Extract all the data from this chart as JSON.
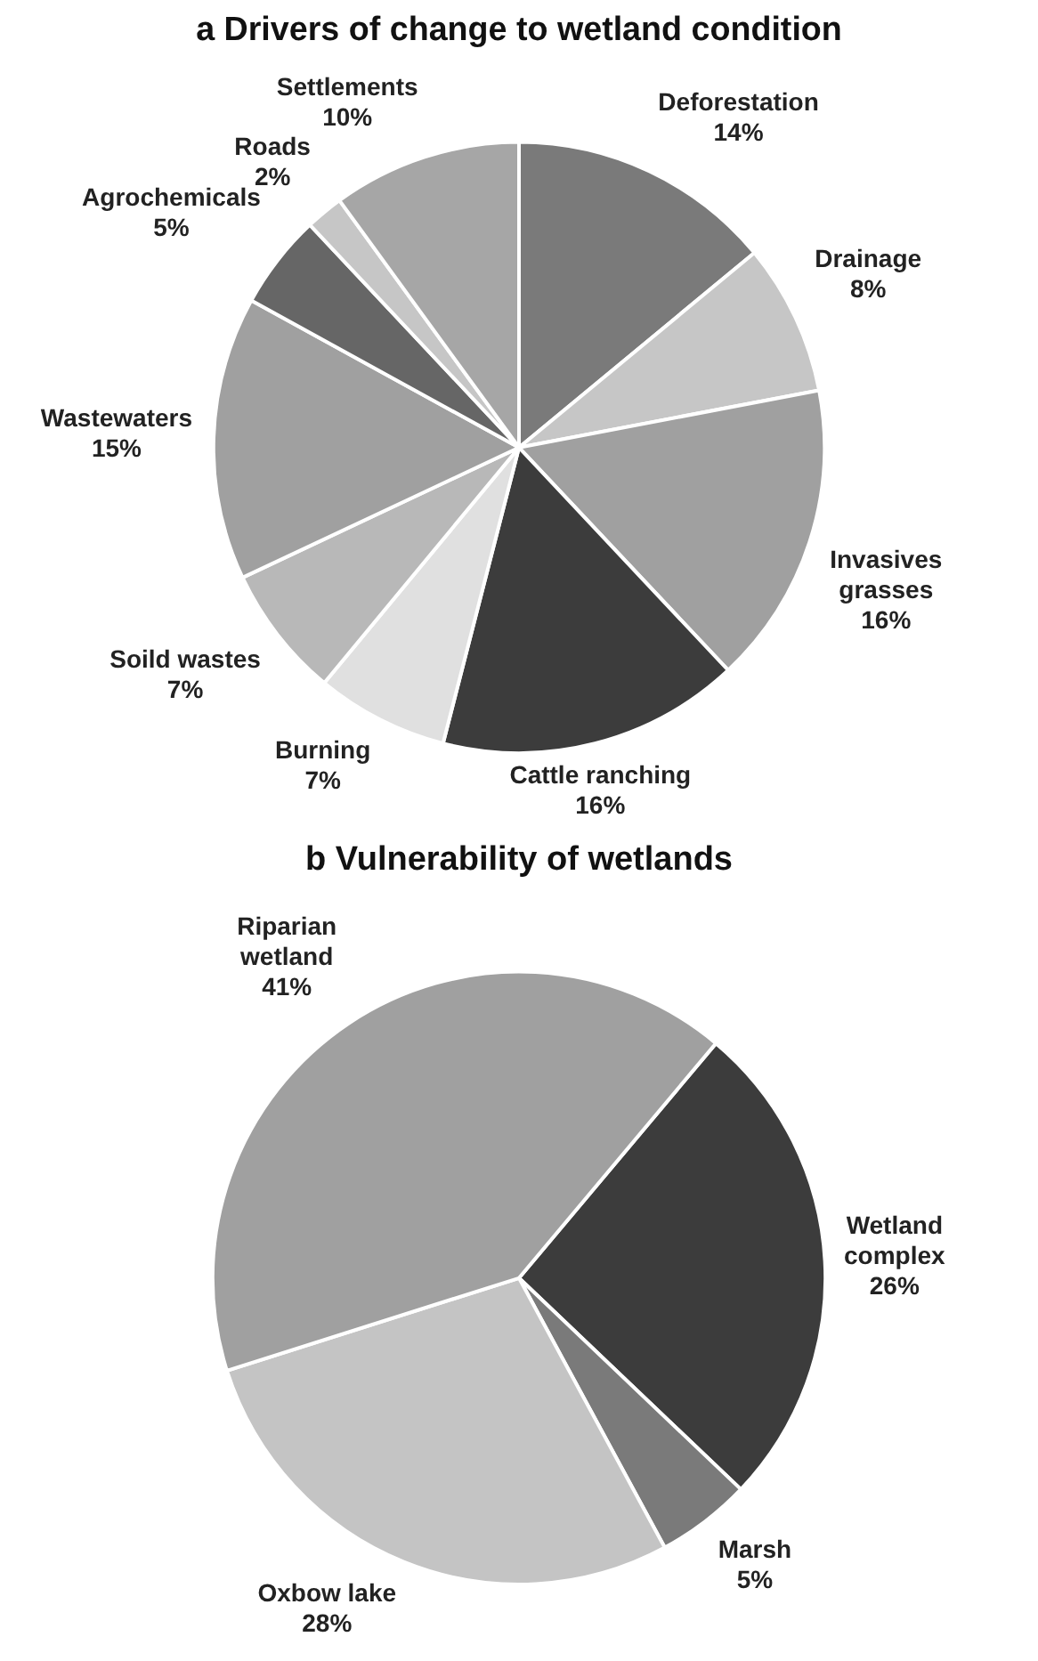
{
  "chart_data": [
    {
      "type": "pie",
      "title": "a Drivers of change to wetland condition",
      "categories": [
        "Deforestation",
        "Drainage",
        "Invasives grasses",
        "Cattle ranching",
        "Burning",
        "Soild wastes",
        "Wastewaters",
        "Agrochemicals",
        "Roads",
        "Settlements"
      ],
      "values": [
        14,
        8,
        16,
        16,
        7,
        7,
        15,
        5,
        2,
        10
      ],
      "value_labels": [
        "14%",
        "8%",
        "16%",
        "16%",
        "7%",
        "7%",
        "15%",
        "5%",
        "2%",
        "10%"
      ],
      "colors": [
        "#7a7a7a",
        "#c6c6c6",
        "#a0a0a0",
        "#3c3c3c",
        "#e0e0e0",
        "#b8b8b8",
        "#a0a0a0",
        "#666666",
        "#c6c6c6",
        "#a6a6a6"
      ],
      "legend": false
    },
    {
      "type": "pie",
      "title": "b Vulnerability of wetlands",
      "categories": [
        "Wetland complex",
        "Marsh",
        "Oxbow lake",
        "Riparian wetland"
      ],
      "values": [
        26,
        5,
        28,
        41
      ],
      "value_labels": [
        "26%",
        "5%",
        "28%",
        "41%"
      ],
      "colors": [
        "#3c3c3c",
        "#7a7a7a",
        "#c4c4c4",
        "#a0a0a0"
      ],
      "legend": false
    }
  ]
}
